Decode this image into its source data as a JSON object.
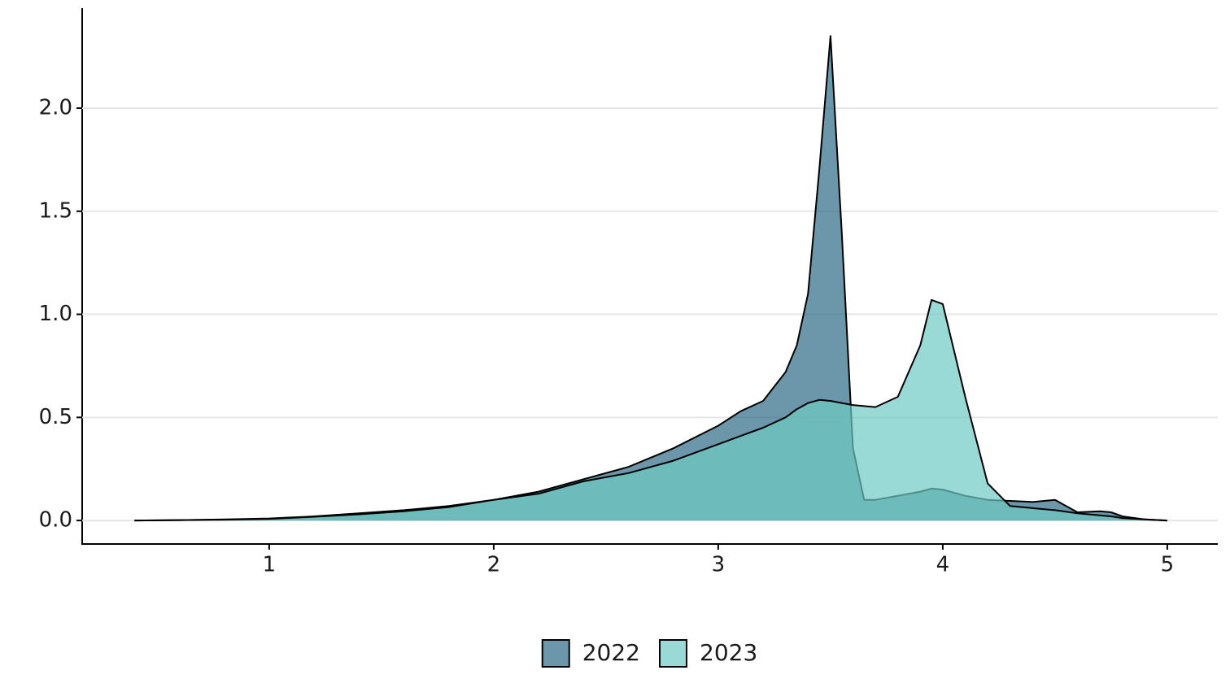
{
  "chart_data": {
    "type": "density",
    "x": [
      0.4,
      0.6,
      0.8,
      1.0,
      1.2,
      1.4,
      1.6,
      1.8,
      2.0,
      2.2,
      2.4,
      2.6,
      2.8,
      3.0,
      3.1,
      3.2,
      3.3,
      3.35,
      3.4,
      3.45,
      3.5,
      3.55,
      3.6,
      3.65,
      3.7,
      3.8,
      3.9,
      3.95,
      4.0,
      4.1,
      4.2,
      4.3,
      4.4,
      4.5,
      4.6,
      4.7,
      4.75,
      4.8,
      4.9,
      5.0
    ],
    "series": [
      {
        "name": "2022",
        "color": "#2e6a84",
        "values": [
          0,
          0.002,
          0.005,
          0.01,
          0.02,
          0.035,
          0.05,
          0.07,
          0.1,
          0.14,
          0.2,
          0.26,
          0.35,
          0.46,
          0.53,
          0.58,
          0.72,
          0.85,
          1.1,
          1.7,
          2.35,
          1.4,
          0.35,
          0.1,
          0.1,
          0.12,
          0.14,
          0.155,
          0.15,
          0.12,
          0.1,
          0.095,
          0.09,
          0.1,
          0.04,
          0.045,
          0.04,
          0.02,
          0.005,
          0
        ]
      },
      {
        "name": "2023",
        "color": "#6fcbc5",
        "values": [
          0,
          0.002,
          0.004,
          0.008,
          0.018,
          0.03,
          0.045,
          0.065,
          0.1,
          0.13,
          0.19,
          0.23,
          0.29,
          0.37,
          0.41,
          0.45,
          0.5,
          0.54,
          0.57,
          0.585,
          0.58,
          0.57,
          0.56,
          0.555,
          0.55,
          0.6,
          0.85,
          1.07,
          1.05,
          0.6,
          0.18,
          0.07,
          0.06,
          0.05,
          0.035,
          0.025,
          0.02,
          0.012,
          0.005,
          0
        ]
      }
    ],
    "xlim": [
      0.167,
      5.225
    ],
    "xticks": [
      1,
      2,
      3,
      4,
      5
    ],
    "ylim": [
      -0.114,
      2.485
    ],
    "yticks": [
      {
        "value": 0,
        "label": "0.0"
      },
      {
        "value": 0.5,
        "label": "0.5"
      },
      {
        "value": 1,
        "label": "1.0"
      },
      {
        "value": 1.5,
        "label": "1.5"
      },
      {
        "value": 2,
        "label": "2.0"
      }
    ],
    "grid": true,
    "legend": "bottom"
  }
}
